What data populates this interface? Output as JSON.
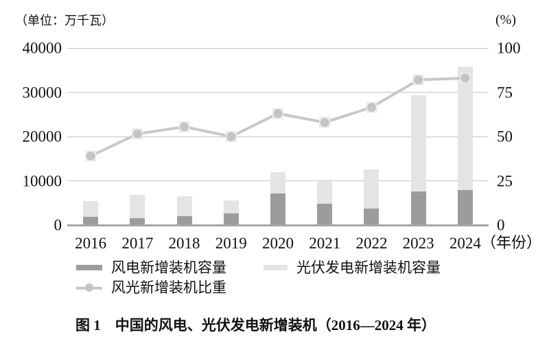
{
  "header": {
    "unit_left": "（单位：万千瓦）",
    "unit_right": "(%)"
  },
  "x_axis": {
    "unit_suffix": "（年份）"
  },
  "legend": {
    "wind_label": "风电新增装机容量",
    "solar_label": "光伏发电新增装机容量",
    "share_label": "风光新增装机比重"
  },
  "caption": {
    "text": "图 1　中国的风电、光伏发电新增装机（2016—2024 年）"
  },
  "colors": {
    "wind_bar": "#9c9c9c",
    "solar_bar": "#e4e4e4",
    "share_line": "#c8c8c8",
    "marker_fill": "#c4c4c4",
    "marker_halo": "#ebebeb",
    "gridline": "#c3c3c3",
    "baseline": "#a6a6a6",
    "text": "#111111"
  },
  "chart_data": {
    "type": "bar",
    "subtype": "stacked-bars-with-line",
    "title": "图 1　中国的风电、光伏发电新增装机（2016—2024 年）",
    "categories": [
      "2016",
      "2017",
      "2018",
      "2019",
      "2020",
      "2021",
      "2022",
      "2023",
      "2024"
    ],
    "series": [
      {
        "name": "风电新增装机容量",
        "type": "bar",
        "stack": "capacity",
        "axis": "left",
        "values": [
          1930,
          1503,
          2059,
          2574,
          7167,
          4757,
          3763,
          7590,
          7982
        ]
      },
      {
        "name": "光伏发电新增装机容量",
        "type": "bar",
        "stack": "capacity",
        "axis": "left",
        "values": [
          3454,
          5306,
          4426,
          3011,
          4820,
          5488,
          8741,
          21688,
          27757
        ]
      },
      {
        "name": "风光新增装机比重",
        "type": "line",
        "axis": "right",
        "values": [
          39,
          51.5,
          55.5,
          50,
          63,
          58,
          66.5,
          82,
          83
        ]
      }
    ],
    "left_axis": {
      "label": "（单位：万千瓦）",
      "range": [
        0,
        40000
      ],
      "ticks": [
        0,
        10000,
        20000,
        30000,
        40000
      ]
    },
    "right_axis": {
      "label": "(%)",
      "range": [
        0,
        100
      ],
      "ticks": [
        0,
        25,
        50,
        75,
        100
      ]
    },
    "xlabel": "（年份）",
    "grid": true,
    "legend_position": "bottom"
  }
}
